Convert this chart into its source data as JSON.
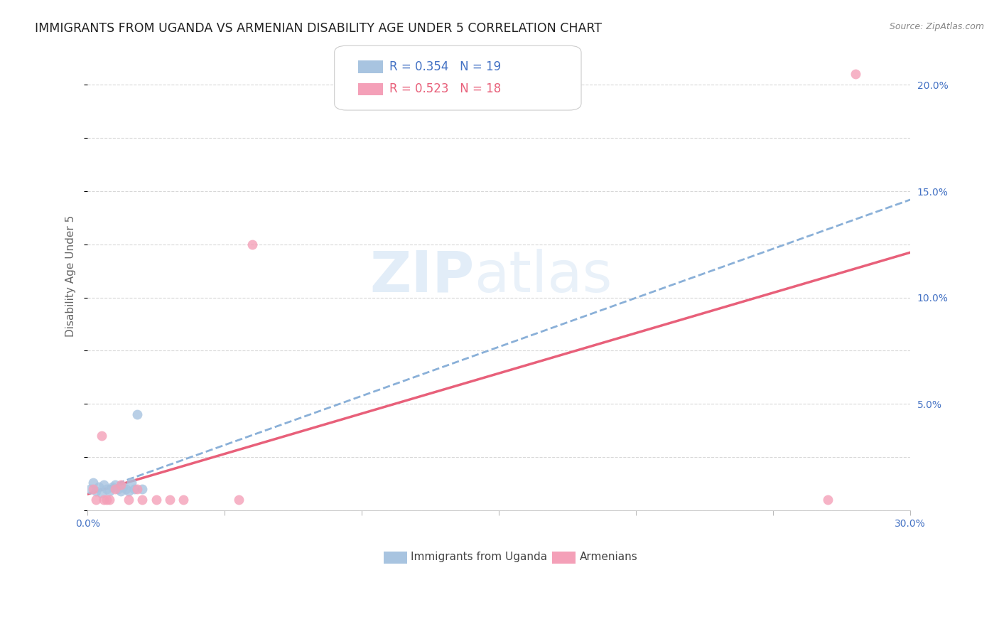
{
  "title": "IMMIGRANTS FROM UGANDA VS ARMENIAN DISABILITY AGE UNDER 5 CORRELATION CHART",
  "source": "Source: ZipAtlas.com",
  "ylabel": "Disability Age Under 5",
  "watermark": "ZIPatlas",
  "xlim": [
    0.0,
    0.3
  ],
  "ylim": [
    0.0,
    0.22
  ],
  "xticks": [
    0.0,
    0.05,
    0.1,
    0.15,
    0.2,
    0.25,
    0.3
  ],
  "xtick_labels": [
    "0.0%",
    "",
    "",
    "",
    "",
    "",
    "30.0%"
  ],
  "yticks": [
    0.0,
    0.05,
    0.1,
    0.15,
    0.2
  ],
  "ytick_labels": [
    "",
    "5.0%",
    "10.0%",
    "15.0%",
    "20.0%"
  ],
  "uganda_x": [
    0.001,
    0.002,
    0.003,
    0.004,
    0.005,
    0.006,
    0.007,
    0.008,
    0.009,
    0.01,
    0.011,
    0.012,
    0.013,
    0.014,
    0.015,
    0.016,
    0.017,
    0.018,
    0.02
  ],
  "uganda_y": [
    0.01,
    0.013,
    0.009,
    0.011,
    0.008,
    0.012,
    0.01,
    0.009,
    0.011,
    0.012,
    0.01,
    0.009,
    0.011,
    0.01,
    0.009,
    0.013,
    0.01,
    0.045,
    0.01
  ],
  "armenian_x": [
    0.002,
    0.003,
    0.005,
    0.006,
    0.007,
    0.008,
    0.01,
    0.012,
    0.015,
    0.018,
    0.02,
    0.025,
    0.03,
    0.035,
    0.055,
    0.06,
    0.27,
    0.28
  ],
  "armenian_y": [
    0.01,
    0.005,
    0.035,
    0.005,
    0.005,
    0.005,
    0.01,
    0.012,
    0.005,
    0.01,
    0.005,
    0.005,
    0.005,
    0.005,
    0.005,
    0.125,
    0.005,
    0.205
  ],
  "uganda_R": 0.354,
  "uganda_N": 19,
  "armenian_R": 0.523,
  "armenian_N": 18,
  "uganda_dot_color": "#a8c4e0",
  "armenian_dot_color": "#f4a0b8",
  "uganda_line_color": "#8ab0d8",
  "armenian_line_color": "#e8607a",
  "uganda_legend_color": "#4472c4",
  "armenian_legend_color": "#e8607a",
  "grid_color": "#d8d8d8",
  "bg_color": "#ffffff",
  "title_color": "#222222",
  "source_color": "#888888",
  "label_color": "#666666",
  "tick_color": "#4472c4",
  "marker_size": 100,
  "title_fontsize": 12.5,
  "legend_fontsize": 12,
  "tick_fontsize": 10,
  "ylabel_fontsize": 11
}
